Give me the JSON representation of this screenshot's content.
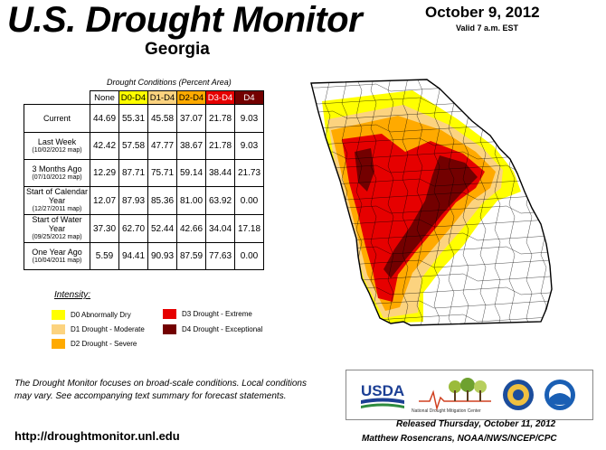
{
  "header": {
    "title": "U.S. Drought Monitor",
    "state": "Georgia",
    "date": "October 9, 2012",
    "valid": "Valid 7 a.m. EST"
  },
  "table": {
    "caption": "Drought Conditions (Percent Area)",
    "columns": [
      "None",
      "D0-D4",
      "D1-D4",
      "D2-D4",
      "D3-D4",
      "D4"
    ],
    "column_colors": [
      "#ffffff",
      "#ffff00",
      "#fcd37f",
      "#ffaa00",
      "#e60000",
      "#730000"
    ],
    "column_text_colors": [
      "#000000",
      "#000000",
      "#000000",
      "#000000",
      "#ffffff",
      "#ffffff"
    ],
    "rows": [
      {
        "label": "Current",
        "sub": "",
        "values": [
          "44.69",
          "55.31",
          "45.58",
          "37.07",
          "21.78",
          "9.03"
        ]
      },
      {
        "label": "Last Week",
        "sub": "(10/02/2012 map)",
        "values": [
          "42.42",
          "57.58",
          "47.77",
          "38.67",
          "21.78",
          "9.03"
        ]
      },
      {
        "label": "3 Months Ago",
        "sub": "(07/10/2012 map)",
        "values": [
          "12.29",
          "87.71",
          "75.71",
          "59.14",
          "38.44",
          "21.73"
        ]
      },
      {
        "label": "Start of Calendar Year",
        "sub": "(12/27/2011 map)",
        "values": [
          "12.07",
          "87.93",
          "85.36",
          "81.00",
          "63.92",
          "0.00"
        ]
      },
      {
        "label": "Start of Water Year",
        "sub": "(09/25/2012 map)",
        "values": [
          "37.30",
          "62.70",
          "52.44",
          "42.66",
          "34.04",
          "17.18"
        ]
      },
      {
        "label": "One Year Ago",
        "sub": "(10/04/2011 map)",
        "values": [
          "5.59",
          "94.41",
          "90.93",
          "87.59",
          "77.63",
          "0.00"
        ]
      }
    ]
  },
  "legend": {
    "title": "Intensity:",
    "items": [
      {
        "label": "D0 Abnormally Dry",
        "color": "#ffff00"
      },
      {
        "label": "D1 Drought - Moderate",
        "color": "#fcd37f"
      },
      {
        "label": "D2 Drought - Severe",
        "color": "#ffaa00"
      },
      {
        "label": "D3 Drought - Extreme",
        "color": "#e60000"
      },
      {
        "label": "D4 Drought - Exceptional",
        "color": "#730000"
      }
    ]
  },
  "note": "The Drought Monitor focuses on broad-scale conditions. Local conditions may vary. See accompanying text summary for forecast statements.",
  "url": "http://droughtmonitor.unl.edu",
  "logos": {
    "usda": "USDA",
    "ndmc": "National Drought Mitigation Center",
    "icons": [
      "usda-logo-icon",
      "ndmc-logo-icon",
      "commerce-seal-icon",
      "noaa-logo-icon"
    ]
  },
  "footer": {
    "released": "Released Thursday, October 11, 2012",
    "author": "Matthew Rosencrans, NOAA/NWS/NCEP/CPC"
  },
  "map_colors": {
    "none": "#ffffff",
    "D0": "#ffff00",
    "D1": "#fcd37f",
    "D2": "#ffaa00",
    "D3": "#e60000",
    "D4": "#730000"
  }
}
